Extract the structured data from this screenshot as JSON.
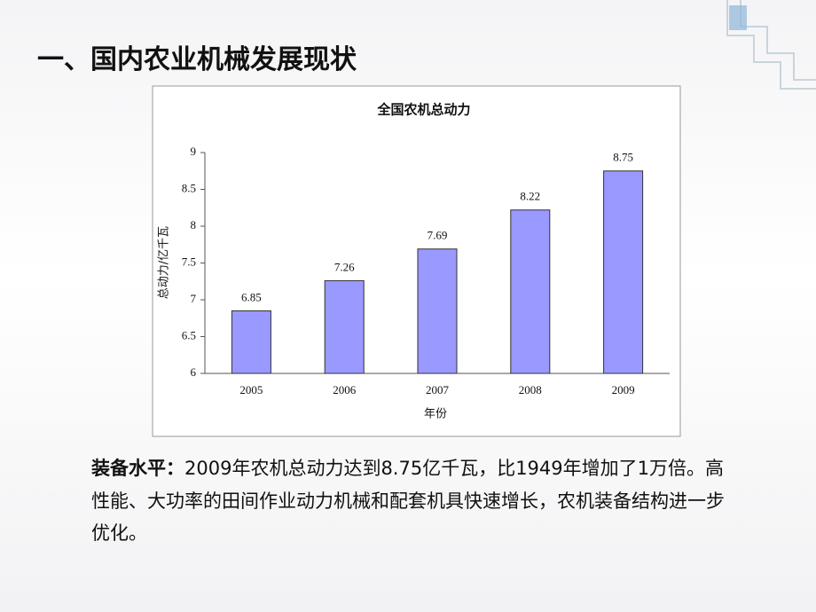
{
  "slide_title": "一、国内农业机械发展现状",
  "chart_data": {
    "type": "bar",
    "title": "全国农机总动力",
    "categories": [
      "2005",
      "2006",
      "2007",
      "2008",
      "2009"
    ],
    "values": [
      6.85,
      7.26,
      7.69,
      8.22,
      8.75
    ],
    "color": "#9999ff",
    "x_label": "年份",
    "y_label": "总动力/亿千瓦",
    "ylim": [
      6,
      9
    ],
    "yticks": [
      6,
      6.5,
      7,
      7.5,
      8,
      8.5,
      9
    ],
    "grid": false
  },
  "paragraph": {
    "lead": "装备水平：",
    "body": "2009年农机总动力达到8.75亿千瓦，比1949年增加了1万倍。高性能、大功率的田间作业动力机械和配套机具快速增长，农机装备结构进一步优化。"
  }
}
